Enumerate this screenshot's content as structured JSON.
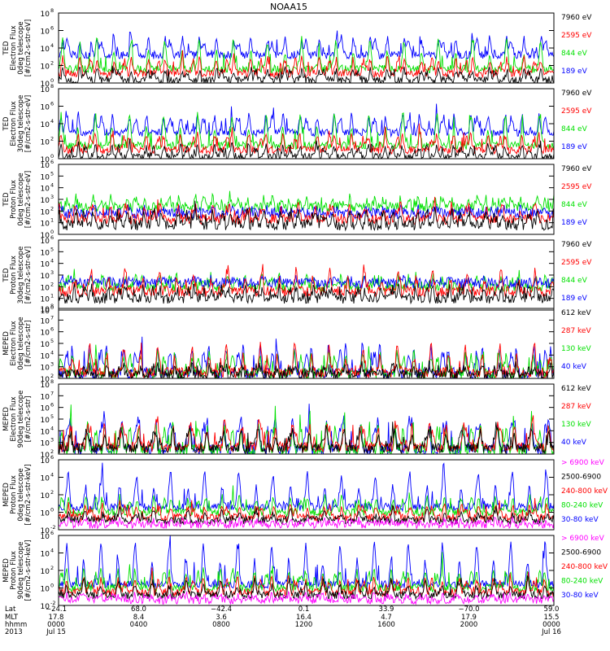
{
  "title": "NOAA15",
  "colors": {
    "blue": "#0000ff",
    "red": "#ff0000",
    "green": "#00e000",
    "black": "#000000",
    "magenta": "#ff00ff"
  },
  "chart_data": [
    {
      "type": "line",
      "ylabel": [
        "TED",
        "Electron Flux",
        "0deg telescope",
        "[#/cm2-s-str-eV]"
      ],
      "yticks": [
        {
          "label": "10",
          "exp": "0"
        },
        {
          "label": "10",
          "exp": "2"
        },
        {
          "label": "10",
          "exp": "4"
        },
        {
          "label": "10",
          "exp": "6"
        },
        {
          "label": "10",
          "exp": "8"
        }
      ],
      "ylim_exp": [
        0,
        8
      ],
      "scale": "log",
      "legend": [
        {
          "text": "7960 eV",
          "color": "black"
        },
        {
          "text": "2595 eV",
          "color": "red"
        },
        {
          "text": "844 eV",
          "color": "green"
        },
        {
          "text": "189 eV",
          "color": "blue"
        }
      ],
      "series": [
        {
          "color": "blue",
          "base": 3.2,
          "amp": 3.3
        },
        {
          "color": "green",
          "base": 1.6,
          "amp": 3.5
        },
        {
          "color": "red",
          "base": 1.1,
          "amp": 3.0
        },
        {
          "color": "black",
          "base": 0.3,
          "amp": 2.2
        }
      ]
    },
    {
      "type": "line",
      "ylabel": [
        "TED",
        "Electron Flux",
        "30deg telescope",
        "[#/cm2-s-str-eV]"
      ],
      "yticks": [
        {
          "label": "10",
          "exp": "0"
        },
        {
          "label": "10",
          "exp": "2"
        },
        {
          "label": "10",
          "exp": "4"
        },
        {
          "label": "10",
          "exp": "6"
        },
        {
          "label": "10",
          "exp": "8"
        }
      ],
      "ylim_exp": [
        0,
        8
      ],
      "scale": "log",
      "legend": [
        {
          "text": "7960 eV",
          "color": "black"
        },
        {
          "text": "2595 eV",
          "color": "red"
        },
        {
          "text": "844 eV",
          "color": "green"
        },
        {
          "text": "189 eV",
          "color": "blue"
        }
      ],
      "series": [
        {
          "color": "blue",
          "base": 3.0,
          "amp": 3.4
        },
        {
          "color": "green",
          "base": 1.5,
          "amp": 3.6
        },
        {
          "color": "red",
          "base": 1.0,
          "amp": 3.0
        },
        {
          "color": "black",
          "base": 0.2,
          "amp": 2.2
        }
      ]
    },
    {
      "type": "line",
      "ylabel": [
        "TED",
        "Proton Flux",
        "0deg telescope",
        "[#/cm2-s-str-eV]"
      ],
      "yticks": [
        {
          "label": "10",
          "exp": "0"
        },
        {
          "label": "10",
          "exp": "1"
        },
        {
          "label": "10",
          "exp": "2"
        },
        {
          "label": "10",
          "exp": "3"
        },
        {
          "label": "10",
          "exp": "4"
        },
        {
          "label": "10",
          "exp": "5"
        },
        {
          "label": "10",
          "exp": "6"
        }
      ],
      "ylim_exp": [
        0,
        6
      ],
      "scale": "log",
      "legend": [
        {
          "text": "7960 eV",
          "color": "black"
        },
        {
          "text": "2595 eV",
          "color": "red"
        },
        {
          "text": "844 eV",
          "color": "green"
        },
        {
          "text": "189 eV",
          "color": "blue"
        }
      ],
      "series": [
        {
          "color": "green",
          "base": 2.3,
          "amp": 1.4
        },
        {
          "color": "blue",
          "base": 1.8,
          "amp": 0.6
        },
        {
          "color": "red",
          "base": 1.3,
          "amp": 1.8
        },
        {
          "color": "black",
          "base": 0.8,
          "amp": 2.0
        }
      ]
    },
    {
      "type": "line",
      "ylabel": [
        "TED",
        "Proton Flux",
        "30deg telescope",
        "[#/cm2-s-str-eV]"
      ],
      "yticks": [
        {
          "label": "10",
          "exp": "0"
        },
        {
          "label": "10",
          "exp": "1"
        },
        {
          "label": "10",
          "exp": "2"
        },
        {
          "label": "10",
          "exp": "3"
        },
        {
          "label": "10",
          "exp": "4"
        },
        {
          "label": "10",
          "exp": "5"
        },
        {
          "label": "10",
          "exp": "6"
        }
      ],
      "ylim_exp": [
        0,
        6
      ],
      "scale": "log",
      "legend": [
        {
          "text": "7960 eV",
          "color": "black"
        },
        {
          "text": "2595 eV",
          "color": "red"
        },
        {
          "text": "844 eV",
          "color": "green"
        },
        {
          "text": "189 eV",
          "color": "blue"
        }
      ],
      "series": [
        {
          "color": "green",
          "base": 2.0,
          "amp": 1.5
        },
        {
          "color": "blue",
          "base": 2.3,
          "amp": 0.6
        },
        {
          "color": "red",
          "base": 1.6,
          "amp": 1.8
        },
        {
          "color": "black",
          "base": 1.0,
          "amp": 1.6
        }
      ]
    },
    {
      "type": "line",
      "ylabel": [
        "MEPED",
        "Electron Flux",
        "0deg telescope",
        "[#/cm2-s-str]"
      ],
      "yticks": [
        {
          "label": "10",
          "exp": "2"
        },
        {
          "label": "10",
          "exp": "3"
        },
        {
          "label": "10",
          "exp": "4"
        },
        {
          "label": "10",
          "exp": "5"
        },
        {
          "label": "10",
          "exp": "6"
        },
        {
          "label": "10",
          "exp": "7"
        },
        {
          "label": "10",
          "exp": "8"
        }
      ],
      "ylim_exp": [
        2,
        8
      ],
      "scale": "log",
      "legend": [
        {
          "text": "612 keV",
          "color": "black"
        },
        {
          "text": "287 keV",
          "color": "red"
        },
        {
          "text": "130 keV",
          "color": "green"
        },
        {
          "text": "40 keV",
          "color": "blue"
        }
      ],
      "series": [
        {
          "color": "blue",
          "base": 2.4,
          "amp": 4.0
        },
        {
          "color": "green",
          "base": 2.4,
          "amp": 3.0
        },
        {
          "color": "red",
          "base": 2.5,
          "amp": 2.4
        },
        {
          "color": "black",
          "base": 2.3,
          "amp": 1.2
        }
      ]
    },
    {
      "type": "line",
      "ylabel": [
        "MEPED",
        "Electron Flux",
        "90deg telescope",
        "[#/cm2-s-str]"
      ],
      "yticks": [
        {
          "label": "10",
          "exp": "2"
        },
        {
          "label": "10",
          "exp": "3"
        },
        {
          "label": "10",
          "exp": "4"
        },
        {
          "label": "10",
          "exp": "5"
        },
        {
          "label": "10",
          "exp": "6"
        },
        {
          "label": "10",
          "exp": "7"
        },
        {
          "label": "10",
          "exp": "8"
        }
      ],
      "ylim_exp": [
        2,
        8
      ],
      "scale": "log",
      "legend": [
        {
          "text": "612 keV",
          "color": "black"
        },
        {
          "text": "287 keV",
          "color": "red"
        },
        {
          "text": "130 keV",
          "color": "green"
        },
        {
          "text": "40 keV",
          "color": "blue"
        }
      ],
      "series": [
        {
          "color": "blue",
          "base": 2.4,
          "amp": 4.3
        },
        {
          "color": "green",
          "base": 2.3,
          "amp": 3.8
        },
        {
          "color": "red",
          "base": 2.6,
          "amp": 3.2
        },
        {
          "color": "black",
          "base": 2.5,
          "amp": 2.2
        }
      ]
    },
    {
      "type": "line",
      "ylabel": [
        "MEPED",
        "Proton Flux",
        "0deg telescope",
        "[#/cm2-s-str-keV]"
      ],
      "yticks": [
        {
          "label": "10",
          "exp": "-2"
        },
        {
          "label": "10",
          "exp": "0"
        },
        {
          "label": "10",
          "exp": "2"
        },
        {
          "label": "10",
          "exp": "4"
        },
        {
          "label": "10",
          "exp": "6"
        }
      ],
      "ylim_exp": [
        -2,
        6
      ],
      "scale": "log",
      "legend": [
        {
          "text": "> 6900 keV",
          "color": "magenta"
        },
        {
          "text": "2500-6900",
          "color": "black"
        },
        {
          "text": "240-800 keV",
          "color": "red"
        },
        {
          "text": "80-240 keV",
          "color": "green"
        },
        {
          "text": "30-80 keV",
          "color": "blue"
        }
      ],
      "series": [
        {
          "color": "blue",
          "base": 0.6,
          "amp": 4.2
        },
        {
          "color": "green",
          "base": 0.0,
          "amp": 3.0
        },
        {
          "color": "red",
          "base": -0.6,
          "amp": 2.4
        },
        {
          "color": "black",
          "base": -0.9,
          "amp": 1.2
        },
        {
          "color": "magenta",
          "base": -1.4,
          "amp": 0.8
        }
      ]
    },
    {
      "type": "line",
      "ylabel": [
        "MEPED",
        "Proton Flux",
        "90deg telescope",
        "[#/cm2-s-str-keV]"
      ],
      "yticks": [
        {
          "label": "10",
          "exp": "-2"
        },
        {
          "label": "10",
          "exp": "0"
        },
        {
          "label": "10",
          "exp": "2"
        },
        {
          "label": "10",
          "exp": "4"
        },
        {
          "label": "10",
          "exp": "6"
        }
      ],
      "ylim_exp": [
        -2,
        6
      ],
      "scale": "log",
      "legend": [
        {
          "text": "> 6900 keV",
          "color": "magenta"
        },
        {
          "text": "2500-6900",
          "color": "black"
        },
        {
          "text": "240-800 keV",
          "color": "red"
        },
        {
          "text": "80-240 keV",
          "color": "green"
        },
        {
          "text": "30-80 keV",
          "color": "blue"
        }
      ],
      "series": [
        {
          "color": "blue",
          "base": 0.4,
          "amp": 4.8
        },
        {
          "color": "green",
          "base": 0.0,
          "amp": 3.6
        },
        {
          "color": "red",
          "base": -0.5,
          "amp": 2.8
        },
        {
          "color": "black",
          "base": -0.8,
          "amp": 1.8
        },
        {
          "color": "magenta",
          "base": -1.4,
          "amp": 1.0
        }
      ]
    }
  ],
  "x_axis": {
    "row_labels": [
      "Lat",
      "MLT",
      "hhmm",
      "2013"
    ],
    "ticks": [
      {
        "lat": "−24.1",
        "mlt": "17.8",
        "hhmm": "0000",
        "date": "Jul 15"
      },
      {
        "lat": "68.0",
        "mlt": "8.4",
        "hhmm": "0400",
        "date": ""
      },
      {
        "lat": "−42.4",
        "mlt": "3.6",
        "hhmm": "0800",
        "date": ""
      },
      {
        "lat": "0.1",
        "mlt": "16.4",
        "hhmm": "1200",
        "date": ""
      },
      {
        "lat": "33.9",
        "mlt": "4.7",
        "hhmm": "1600",
        "date": ""
      },
      {
        "lat": "−70.0",
        "mlt": "17.9",
        "hhmm": "2000",
        "date": ""
      },
      {
        "lat": "59.0",
        "mlt": "15.5",
        "hhmm": "0000",
        "date": "Jul 16"
      }
    ]
  }
}
